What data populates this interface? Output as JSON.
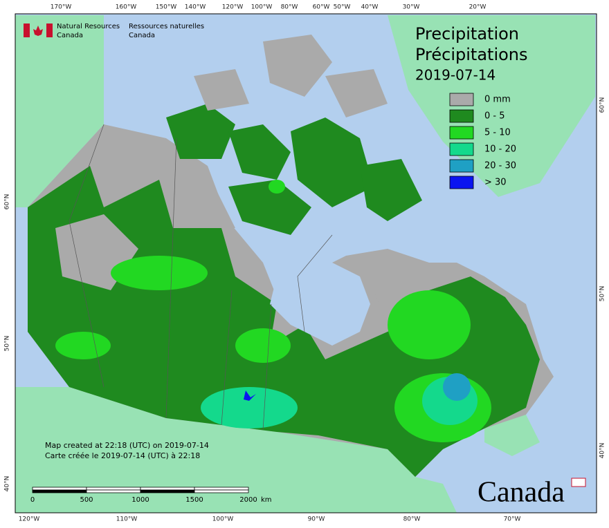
{
  "header": {
    "org_en": [
      "Natural Resources",
      "Canada"
    ],
    "org_fr": [
      "Ressources naturelles",
      "Canada"
    ]
  },
  "title": {
    "en": "Precipitation",
    "fr": "Précipitations",
    "date": "2019-07-14"
  },
  "legend": [
    {
      "label": "0 mm",
      "color": "#aaaaaa"
    },
    {
      "label": "0 - 5",
      "color": "#1f8a1f"
    },
    {
      "label": "5 - 10",
      "color": "#22d822"
    },
    {
      "label": "10 - 20",
      "color": "#14d98c"
    },
    {
      "label": "20 - 30",
      "color": "#1fa0c4"
    },
    {
      "label": "> 30",
      "color": "#0a14f0"
    }
  ],
  "axes": {
    "top": [
      "170°W",
      "160°W",
      "150°W",
      "140°W",
      "120°W",
      "100°W",
      "80°W",
      "60°W",
      "50°W",
      "40°W",
      "30°W",
      "20°W"
    ],
    "bottom": [
      "120°W",
      "110°W",
      "100°W",
      "90°W",
      "80°W",
      "70°W"
    ],
    "left": [
      "60°N",
      "50°N",
      "40°N"
    ],
    "right": [
      "60°N",
      "50°N",
      "40°N"
    ]
  },
  "footnote": [
    "Map created at 22:18 (UTC) on 2019-07-14",
    "Carte créée le 2019-07-14 (UTC) à 22:18"
  ],
  "scale": {
    "labels": [
      "0",
      "500",
      "1000",
      "1500",
      "2000"
    ],
    "unit": "km"
  },
  "wordmark": "Canada"
}
